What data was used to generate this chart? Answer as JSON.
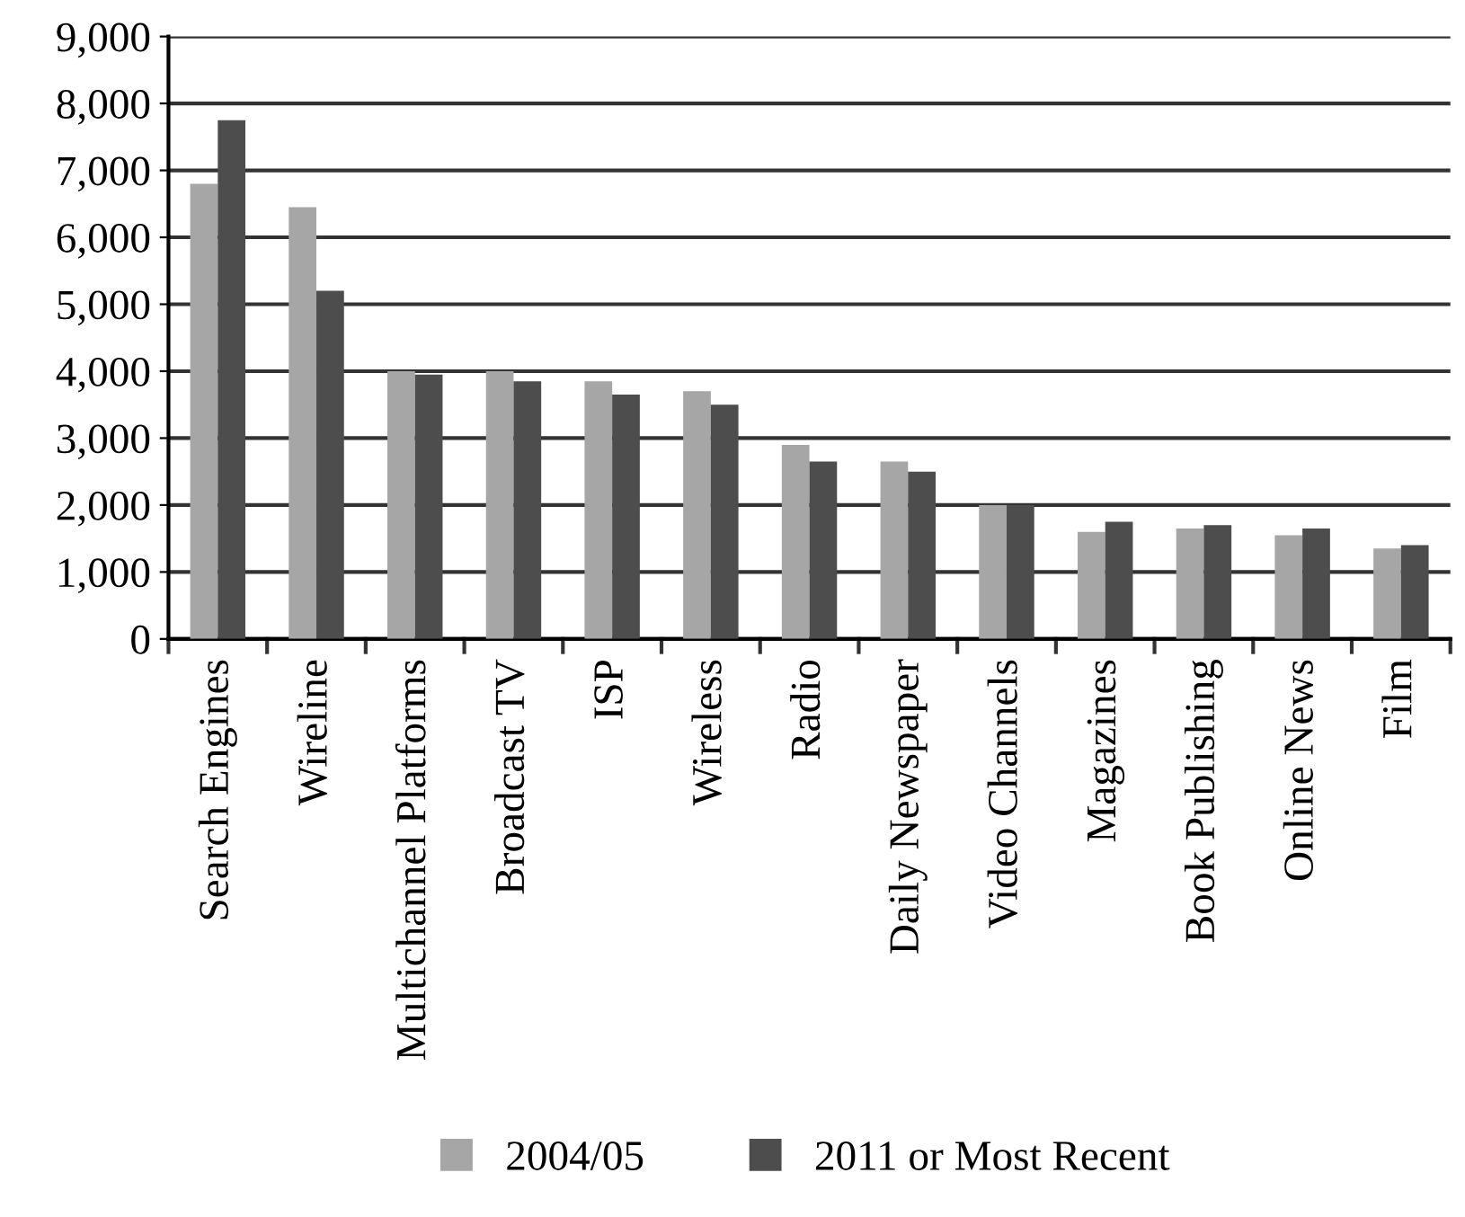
{
  "chart_data": {
    "type": "bar",
    "categories": [
      "Search Engines",
      "Wireline",
      "Multichannel Platforms",
      "Broadcast TV",
      "ISP",
      "Wireless",
      "Radio",
      "Daily Newspaper",
      "Video Channels",
      "Magazines",
      "Book Publishing",
      "Online News",
      "Film"
    ],
    "series": [
      {
        "name": "2004/05",
        "color": "#a6a6a6",
        "values": [
          6800,
          6450,
          4000,
          4000,
          3850,
          3700,
          2900,
          2650,
          2000,
          1600,
          1650,
          1550,
          1350
        ]
      },
      {
        "name": "2011 or Most Recent",
        "color": "#4d4d4d",
        "values": [
          7750,
          5200,
          3950,
          3850,
          3650,
          3500,
          2650,
          2500,
          2000,
          1750,
          1700,
          1650,
          1400
        ]
      }
    ],
    "ylim": [
      0,
      9000
    ],
    "yticks": [
      {
        "value": 0,
        "label": "0"
      },
      {
        "value": 1000,
        "label": "1,000"
      },
      {
        "value": 2000,
        "label": "2,000"
      },
      {
        "value": 3000,
        "label": "3,000"
      },
      {
        "value": 4000,
        "label": "4,000"
      },
      {
        "value": 5000,
        "label": "5,000"
      },
      {
        "value": 6000,
        "label": "6,000"
      },
      {
        "value": 7000,
        "label": "7,000"
      },
      {
        "value": 8000,
        "label": "8,000"
      },
      {
        "value": 9000,
        "label": "9,000"
      }
    ],
    "grid": "y",
    "legend": "bottom"
  }
}
